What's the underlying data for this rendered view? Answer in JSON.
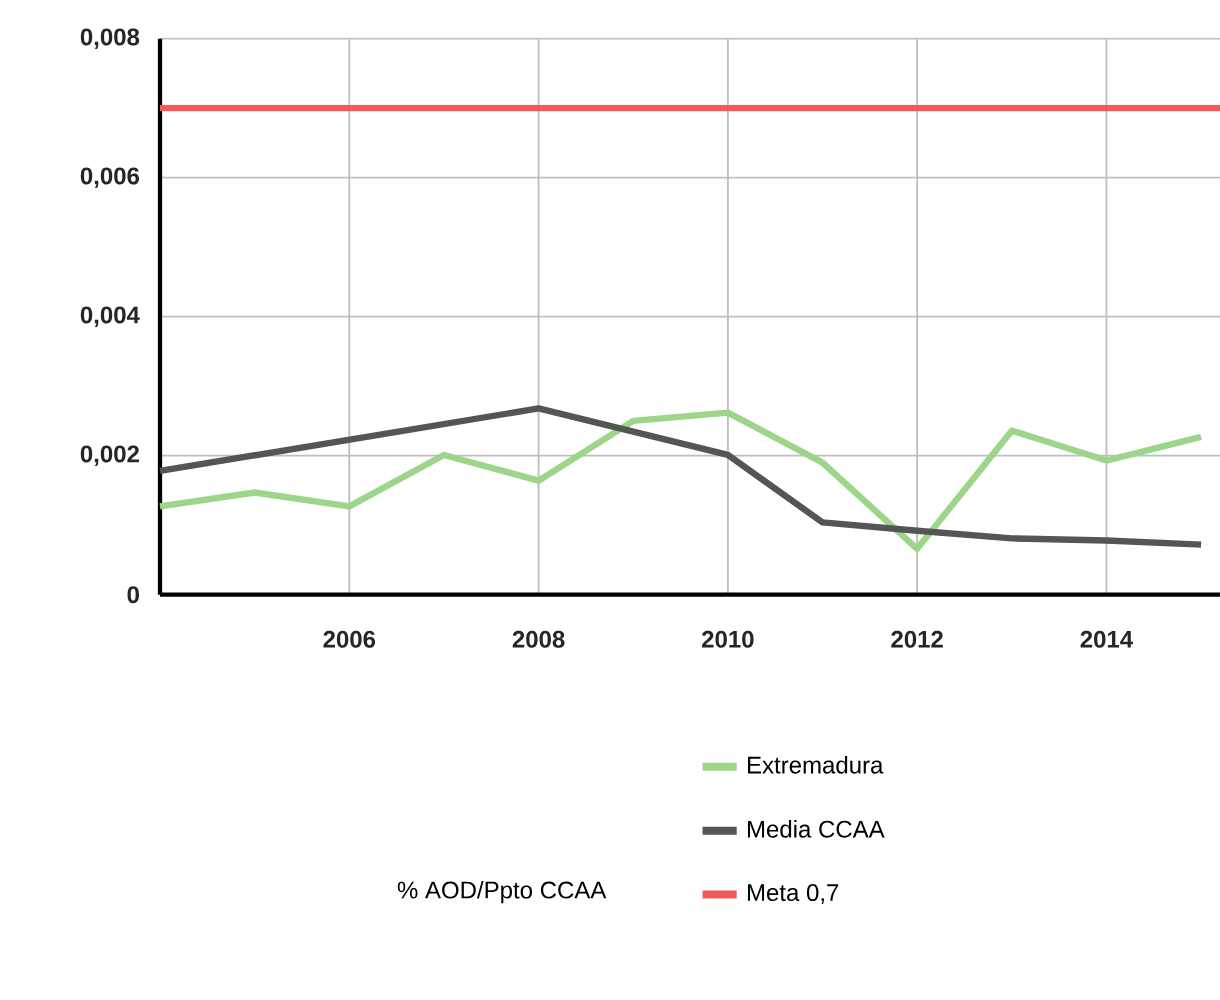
{
  "chart_data": {
    "type": "line",
    "legend_title": "% AOD/Ppto CCAA",
    "x": [
      2004,
      2005,
      2006,
      2007,
      2008,
      2009,
      2010,
      2011,
      2012,
      2013,
      2014,
      2015
    ],
    "series": [
      {
        "name": "Extremadura",
        "color": "#9dd58a",
        "values": [
          0.00127,
          0.00147,
          0.00127,
          0.00201,
          0.00164,
          0.0025,
          0.00262,
          0.0019,
          0.00066,
          0.00236,
          0.00193,
          0.00227
        ]
      },
      {
        "name": "Media CCAA",
        "color": "#555555",
        "x": [
          2004,
          2008,
          2010,
          2011,
          2012,
          2013,
          2014,
          2015
        ],
        "values": [
          0.00178,
          0.00268,
          0.00201,
          0.00104,
          0.00092,
          0.00081,
          0.00078,
          0.00072
        ]
      },
      {
        "name": "Meta 0,7",
        "color": "#f05a5a",
        "x": [
          2004,
          2015.2
        ],
        "values": [
          0.007,
          0.007
        ]
      }
    ],
    "xlim": [
      2004,
      2015.2
    ],
    "ylim": [
      0,
      0.008
    ],
    "xticks": [
      2006,
      2008,
      2010,
      2012,
      2014
    ],
    "yticks": [
      0,
      {
        "value": 0.002,
        "label": "0,002"
      },
      {
        "value": 0.004,
        "label": "0,004"
      },
      {
        "value": 0.006,
        "label": "0,006"
      },
      {
        "value": 0.008,
        "label": "0,008"
      }
    ],
    "grid": true,
    "legend": "bottom",
    "marker": "none",
    "line_style": "solid"
  }
}
